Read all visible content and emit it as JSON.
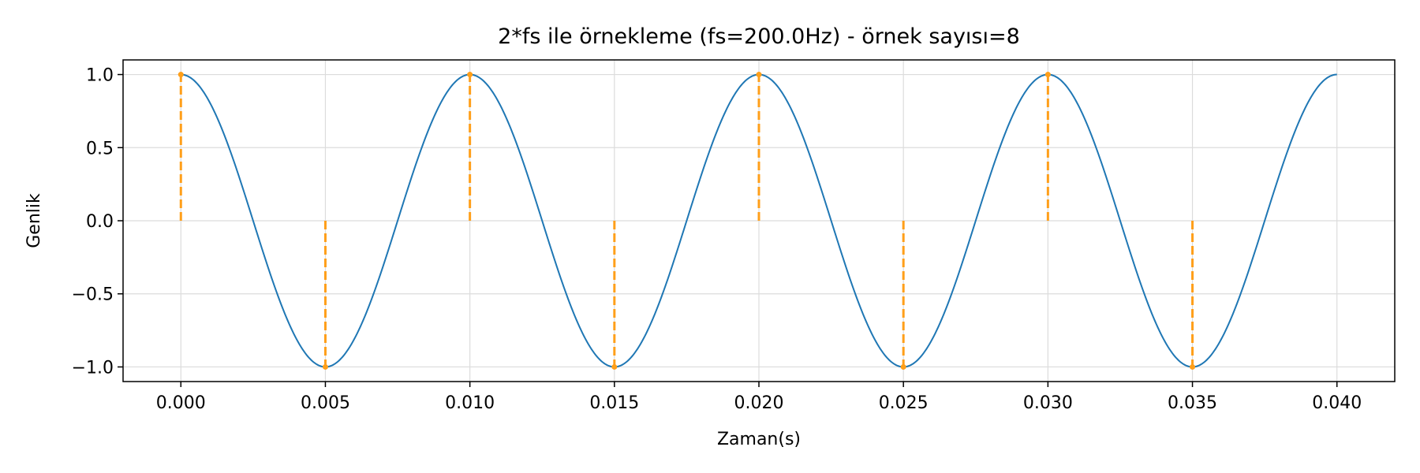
{
  "chart_data": {
    "type": "line",
    "title": "2*fs ile örnekleme (fs=200.0Hz) - örnek sayısı=8",
    "xlabel": "Zaman(s)",
    "ylabel": "Genlik",
    "xlim": [
      -0.002,
      0.042
    ],
    "ylim": [
      -1.1,
      1.1
    ],
    "grid": true,
    "x_ticks": [
      0.0,
      0.005,
      0.01,
      0.015,
      0.02,
      0.025,
      0.03,
      0.035,
      0.04
    ],
    "x_tick_labels": [
      "0.000",
      "0.005",
      "0.010",
      "0.015",
      "0.020",
      "0.025",
      "0.030",
      "0.035",
      "0.040"
    ],
    "y_ticks": [
      1.0,
      0.5,
      0.0,
      -0.5,
      -1.0
    ],
    "y_tick_labels": [
      "1.0",
      "0.5",
      "0.0",
      "−0.5",
      "−1.0"
    ],
    "series": [
      {
        "kind": "line",
        "color": "#1f77b4",
        "function": "cos(2*pi*100*t)",
        "x_start": 0.0,
        "x_end": 0.04
      },
      {
        "kind": "stem",
        "color": "#ff9f1a",
        "x": [
          0.0,
          0.005,
          0.01,
          0.015,
          0.02,
          0.025,
          0.03,
          0.035
        ],
        "y": [
          1.0,
          -1.0,
          1.0,
          -1.0,
          1.0,
          -1.0,
          1.0,
          -1.0
        ]
      }
    ]
  }
}
